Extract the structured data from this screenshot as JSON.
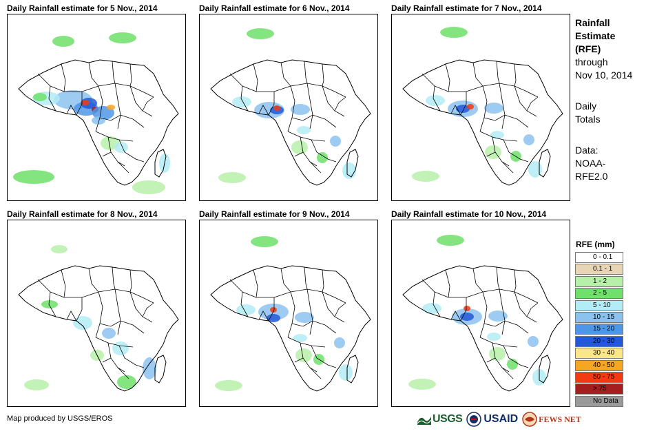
{
  "panels": [
    {
      "title": "Daily Rainfall estimate for 5 Nov., 2014",
      "rain_intensity": "high"
    },
    {
      "title": "Daily Rainfall estimate for 6 Nov., 2014",
      "rain_intensity": "moderate"
    },
    {
      "title": "Daily Rainfall estimate for 7 Nov., 2014",
      "rain_intensity": "moderate"
    },
    {
      "title": "Daily Rainfall estimate for 8 Nov., 2014",
      "rain_intensity": "low"
    },
    {
      "title": "Daily Rainfall estimate for 9 Nov., 2014",
      "rain_intensity": "moderate"
    },
    {
      "title": "Daily Rainfall estimate for 10 Nov., 2014",
      "rain_intensity": "moderate"
    }
  ],
  "side": {
    "title_line1": "Rainfall",
    "title_line2": "Estimate",
    "title_line3": "(RFE)",
    "through": "through",
    "date": "Nov 10, 2014",
    "daily1": "Daily",
    "daily2": "Totals",
    "data1": "Data:",
    "data2": "NOAA-",
    "data3": "RFE2.0"
  },
  "legend": {
    "title": "RFE (mm)",
    "items": [
      {
        "label": "0 - 0.1",
        "color": "#ffffff"
      },
      {
        "label": "0.1 - 1",
        "color": "#e8d5b5"
      },
      {
        "label": "1 - 2",
        "color": "#b7f0a8"
      },
      {
        "label": "2 - 5",
        "color": "#6fe06a"
      },
      {
        "label": "5 - 10",
        "color": "#b4ecf5"
      },
      {
        "label": "10 - 15",
        "color": "#8cc2ee"
      },
      {
        "label": "15 - 20",
        "color": "#4f97e6"
      },
      {
        "label": "20 - 30",
        "color": "#2259d8"
      },
      {
        "label": "30 - 40",
        "color": "#fbe787"
      },
      {
        "label": "40 - 50",
        "color": "#f5a623"
      },
      {
        "label": "50 - 75",
        "color": "#f23b12"
      },
      {
        "label": "> 75",
        "color": "#a41e1e"
      },
      {
        "label": "No Data",
        "color": "#9a9a9a"
      }
    ]
  },
  "footer": "Map produced by USGS/EROS",
  "logos": {
    "usgs": "USGS",
    "usaid": "USAID",
    "fews": "FEWS NET"
  }
}
